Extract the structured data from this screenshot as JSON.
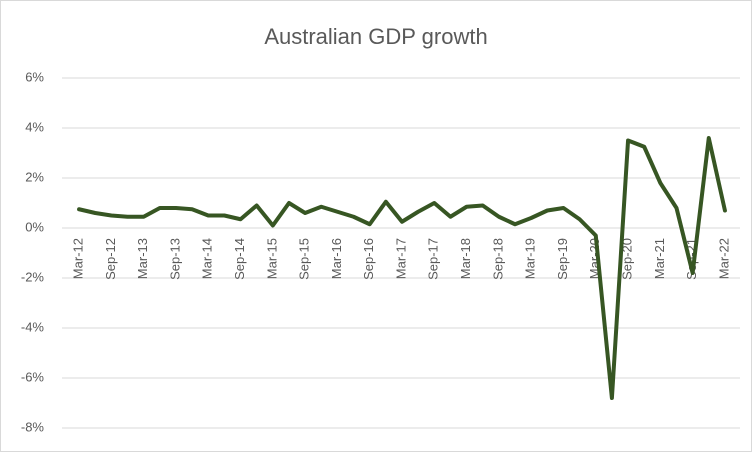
{
  "chart_data": {
    "type": "line",
    "title": "Australian GDP growth",
    "categories": [
      "Mar-12",
      null,
      "Sep-12",
      null,
      "Mar-13",
      null,
      "Sep-13",
      null,
      "Mar-14",
      null,
      "Sep-14",
      null,
      "Mar-15",
      null,
      "Sep-15",
      null,
      "Mar-16",
      null,
      "Sep-16",
      null,
      "Mar-17",
      null,
      "Sep-17",
      null,
      "Mar-18",
      null,
      "Sep-18",
      null,
      "Mar-19",
      null,
      "Sep-19",
      null,
      "Mar-20",
      null,
      "Sep-20",
      null,
      "Mar-21",
      null,
      "Sep-21",
      null,
      "Mar-22"
    ],
    "values": [
      0.75,
      0.6,
      0.5,
      0.45,
      0.45,
      0.8,
      0.8,
      0.75,
      0.5,
      0.5,
      0.35,
      0.9,
      0.1,
      1.0,
      0.6,
      0.85,
      0.65,
      0.45,
      0.15,
      1.05,
      0.25,
      0.65,
      1.0,
      0.45,
      0.85,
      0.9,
      0.45,
      0.15,
      0.4,
      0.7,
      0.8,
      0.35,
      -0.3,
      -6.8,
      3.5,
      3.25,
      1.8,
      0.8,
      -1.8,
      3.6,
      0.7
    ],
    "color": "#375623",
    "ylim": [
      -8,
      6
    ],
    "yticks": [
      {
        "value": -8,
        "label": "-8%"
      },
      {
        "value": -6,
        "label": "-6%"
      },
      {
        "value": -4,
        "label": "-4%"
      },
      {
        "value": -2,
        "label": "-2%"
      },
      {
        "value": 0,
        "label": "0%"
      },
      {
        "value": 2,
        "label": "2%"
      },
      {
        "value": 4,
        "label": "4%"
      },
      {
        "value": 6,
        "label": "6%"
      }
    ],
    "grid": true
  }
}
